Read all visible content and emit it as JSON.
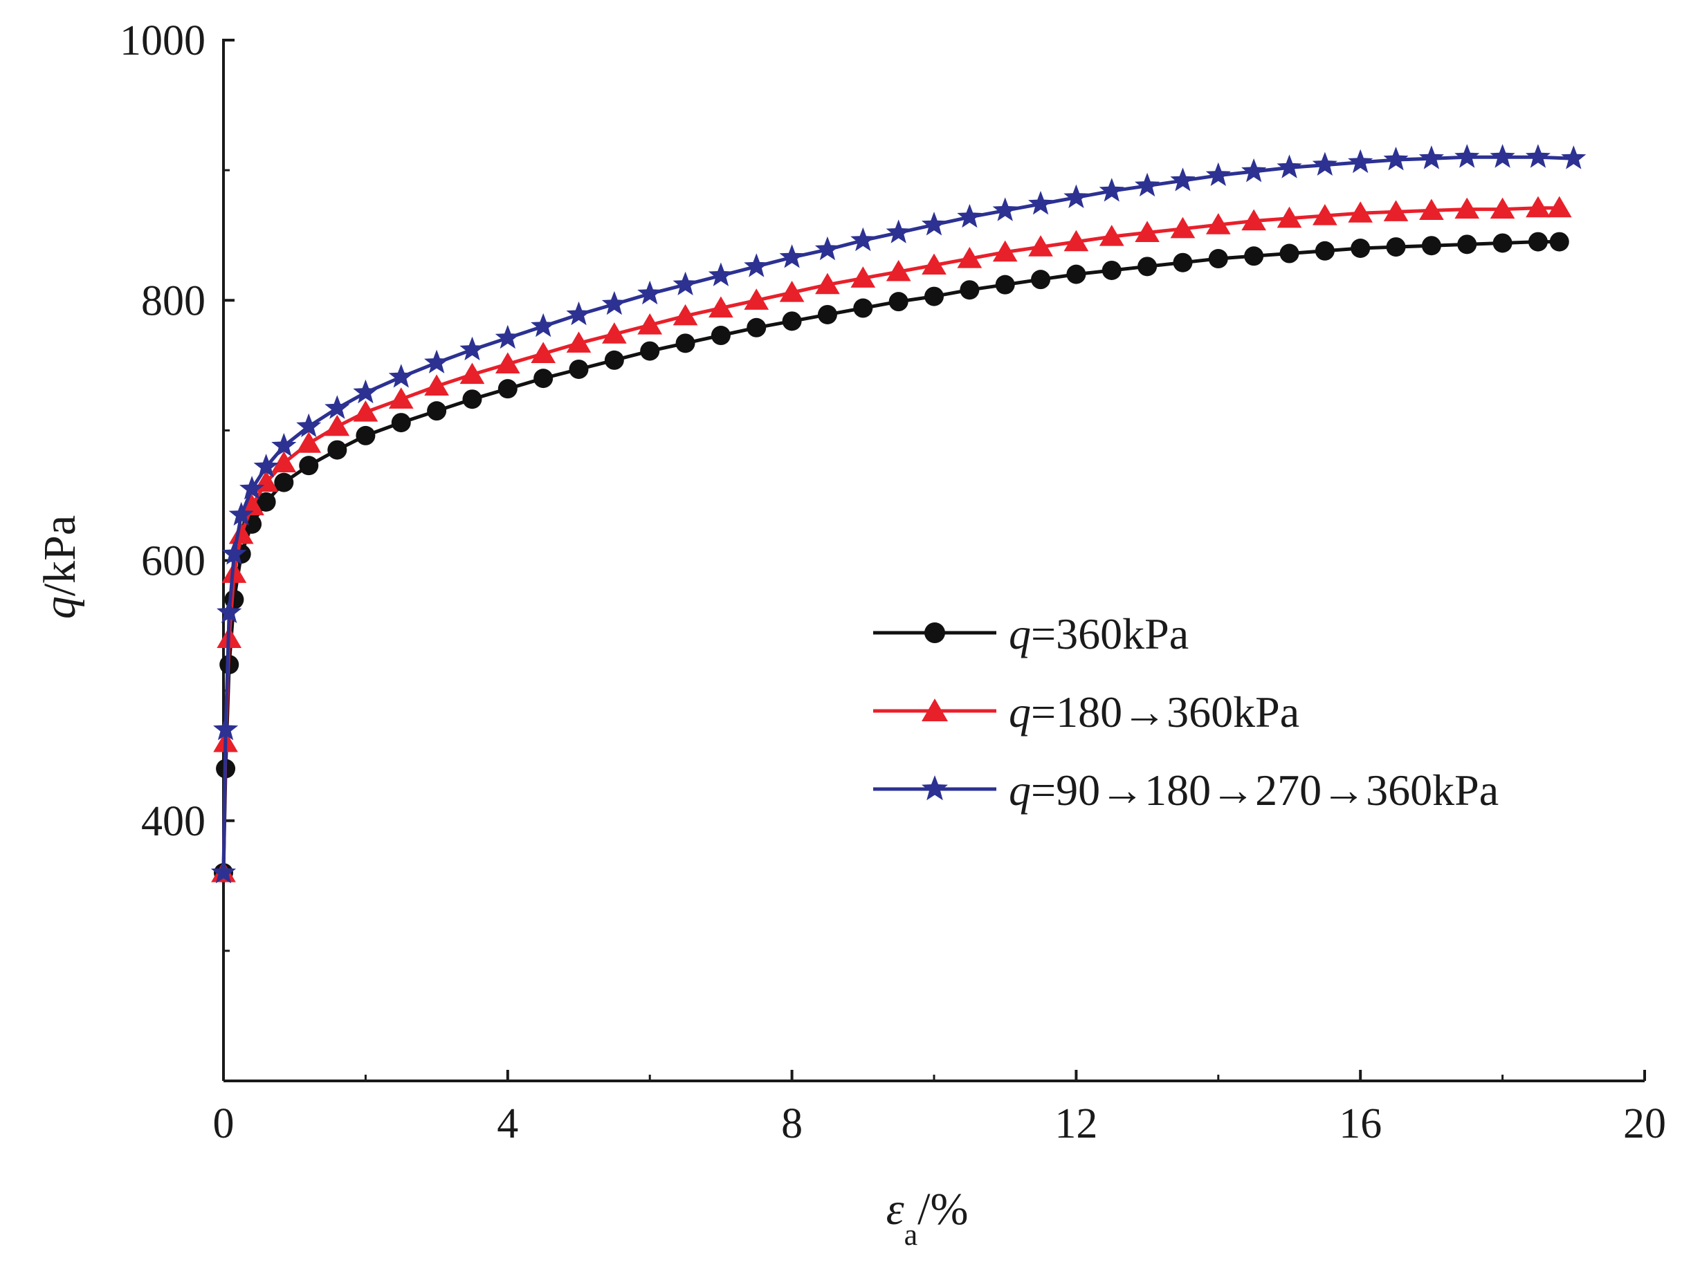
{
  "chart_data": {
    "type": "line",
    "title": "",
    "xlabel": {
      "symbol": "ε",
      "subscript": "a",
      "unit": "/%"
    },
    "ylabel": {
      "symbol": "q",
      "unit": "/kPa"
    },
    "xlim": [
      0,
      20
    ],
    "ylim": [
      200,
      1000
    ],
    "xticks": [
      0,
      4,
      8,
      12,
      16,
      20
    ],
    "xminor": [
      2,
      6,
      10,
      14,
      18
    ],
    "yticks": [
      400,
      600,
      800,
      1000
    ],
    "yminor": [
      300,
      500,
      700,
      900
    ],
    "grid": false,
    "legend_position": "right-middle",
    "series": [
      {
        "name": "q=360kPa",
        "legend_prefix": "q",
        "legend_rest": "=360kPa",
        "color": "#111111",
        "marker": "circle",
        "x": [
          0,
          0.03,
          0.08,
          0.15,
          0.25,
          0.4,
          0.6,
          0.85,
          1.2,
          1.6,
          2.0,
          2.5,
          3.0,
          3.5,
          4.0,
          4.5,
          5.0,
          5.5,
          6.0,
          6.5,
          7.0,
          7.5,
          8.0,
          8.5,
          9.0,
          9.5,
          10.0,
          10.5,
          11.0,
          11.5,
          12.0,
          12.5,
          13.0,
          13.5,
          14.0,
          14.5,
          15.0,
          15.5,
          16.0,
          16.5,
          17.0,
          17.5,
          18.0,
          18.5,
          18.8
        ],
        "y": [
          360,
          440,
          520,
          570,
          605,
          628,
          645,
          660,
          673,
          685,
          696,
          706,
          715,
          724,
          732,
          740,
          747,
          754,
          761,
          767,
          773,
          779,
          784,
          789,
          794,
          799,
          803,
          808,
          812,
          816,
          820,
          823,
          826,
          829,
          832,
          834,
          836,
          838,
          840,
          841,
          842,
          843,
          844,
          845,
          845
        ]
      },
      {
        "name": "q=180→360kPa",
        "legend_prefix": "q",
        "legend_rest": "=180→360kPa",
        "color": "#e8202a",
        "marker": "triangle",
        "x": [
          0,
          0.03,
          0.08,
          0.15,
          0.25,
          0.4,
          0.6,
          0.85,
          1.2,
          1.6,
          2.0,
          2.5,
          3.0,
          3.5,
          4.0,
          4.5,
          5.0,
          5.5,
          6.0,
          6.5,
          7.0,
          7.5,
          8.0,
          8.5,
          9.0,
          9.5,
          10.0,
          10.5,
          11.0,
          11.5,
          12.0,
          12.5,
          13.0,
          13.5,
          14.0,
          14.5,
          15.0,
          15.5,
          16.0,
          16.5,
          17.0,
          17.5,
          18.0,
          18.5,
          18.8
        ],
        "y": [
          360,
          460,
          540,
          590,
          620,
          642,
          660,
          675,
          690,
          703,
          714,
          724,
          734,
          743,
          751,
          759,
          767,
          774,
          781,
          788,
          794,
          800,
          806,
          812,
          817,
          822,
          827,
          832,
          837,
          841,
          845,
          849,
          852,
          855,
          858,
          861,
          863,
          865,
          867,
          868,
          869,
          870,
          870,
          871,
          871
        ]
      },
      {
        "name": "q=90→180→270→360kPa",
        "legend_prefix": "q",
        "legend_rest": "=90→180→270→360kPa",
        "color": "#2c3192",
        "marker": "star",
        "x": [
          0,
          0.03,
          0.08,
          0.15,
          0.25,
          0.4,
          0.6,
          0.85,
          1.2,
          1.6,
          2.0,
          2.5,
          3.0,
          3.5,
          4.0,
          4.5,
          5.0,
          5.5,
          6.0,
          6.5,
          7.0,
          7.5,
          8.0,
          8.5,
          9.0,
          9.5,
          10.0,
          10.5,
          11.0,
          11.5,
          12.0,
          12.5,
          13.0,
          13.5,
          14.0,
          14.5,
          15.0,
          15.5,
          16.0,
          16.5,
          17.0,
          17.5,
          18.0,
          18.5,
          19.0
        ],
        "y": [
          360,
          470,
          560,
          605,
          635,
          655,
          672,
          688,
          703,
          717,
          729,
          741,
          752,
          762,
          771,
          780,
          789,
          797,
          805,
          812,
          819,
          826,
          833,
          839,
          846,
          852,
          858,
          864,
          869,
          874,
          879,
          884,
          888,
          892,
          896,
          899,
          902,
          904,
          906,
          908,
          909,
          910,
          910,
          910,
          909
        ]
      }
    ]
  }
}
